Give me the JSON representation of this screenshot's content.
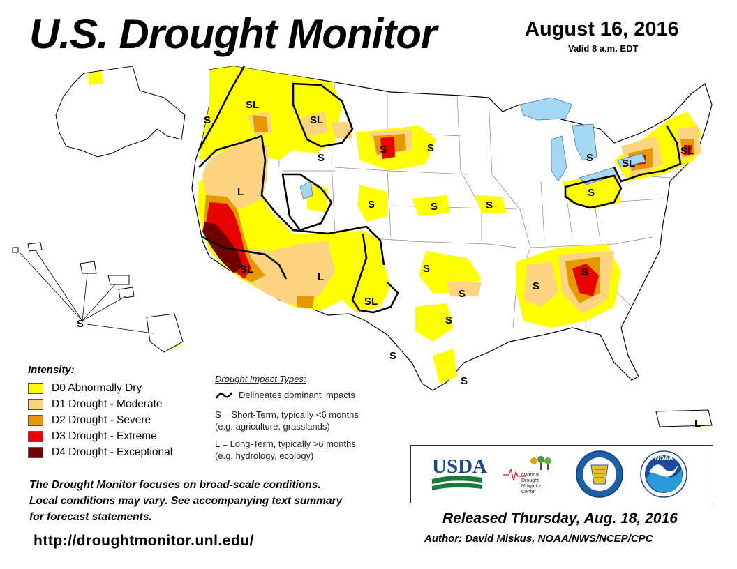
{
  "header": {
    "title": "U.S. Drought Monitor",
    "date": "August 16, 2016",
    "valid": "Valid 8 a.m. EDT"
  },
  "colors": {
    "d0": "#ffff00",
    "d1": "#fcd37f",
    "d2": "#e69800",
    "d3": "#e60000",
    "d4": "#730000",
    "water": "#a5d7f5",
    "border": "#000000"
  },
  "legend": {
    "title": "Intensity:",
    "items": [
      {
        "label": "D0 Abnormally Dry"
      },
      {
        "label": "D1 Drought - Moderate"
      },
      {
        "label": "D2 Drought - Severe"
      },
      {
        "label": "D3 Drought - Extreme"
      },
      {
        "label": "D4 Drought - Exceptional"
      }
    ]
  },
  "impact_types": {
    "title": "Drought Impact Types:",
    "delineates": "Delineates dominant impacts",
    "short_term_1": "S = Short-Term, typically <6 months",
    "short_term_2": "(e.g. agriculture, grasslands)",
    "long_term_1": "L = Long-Term, typically >6 months",
    "long_term_2": "(e.g. hydrology, ecology)"
  },
  "notice": {
    "line1": "The Drought Monitor focuses on broad-scale conditions.",
    "line2": "Local conditions may vary. See accompanying text summary",
    "line3": "for forecast statements."
  },
  "url": "http://droughtmonitor.unl.edu/",
  "logos": {
    "usda": "USDA",
    "ndmc_1": "National",
    "ndmc_2": "Drought",
    "ndmc_3": "Mitigation",
    "ndmc_4": "Center",
    "noaa": "NOAA"
  },
  "released": "Released Thursday, Aug. 18, 2016",
  "author": "Author: David Miskus, NOAA/NWS/NCEP/CPC",
  "map_labels": {
    "s": "S",
    "sl": "SL",
    "l": "L"
  }
}
